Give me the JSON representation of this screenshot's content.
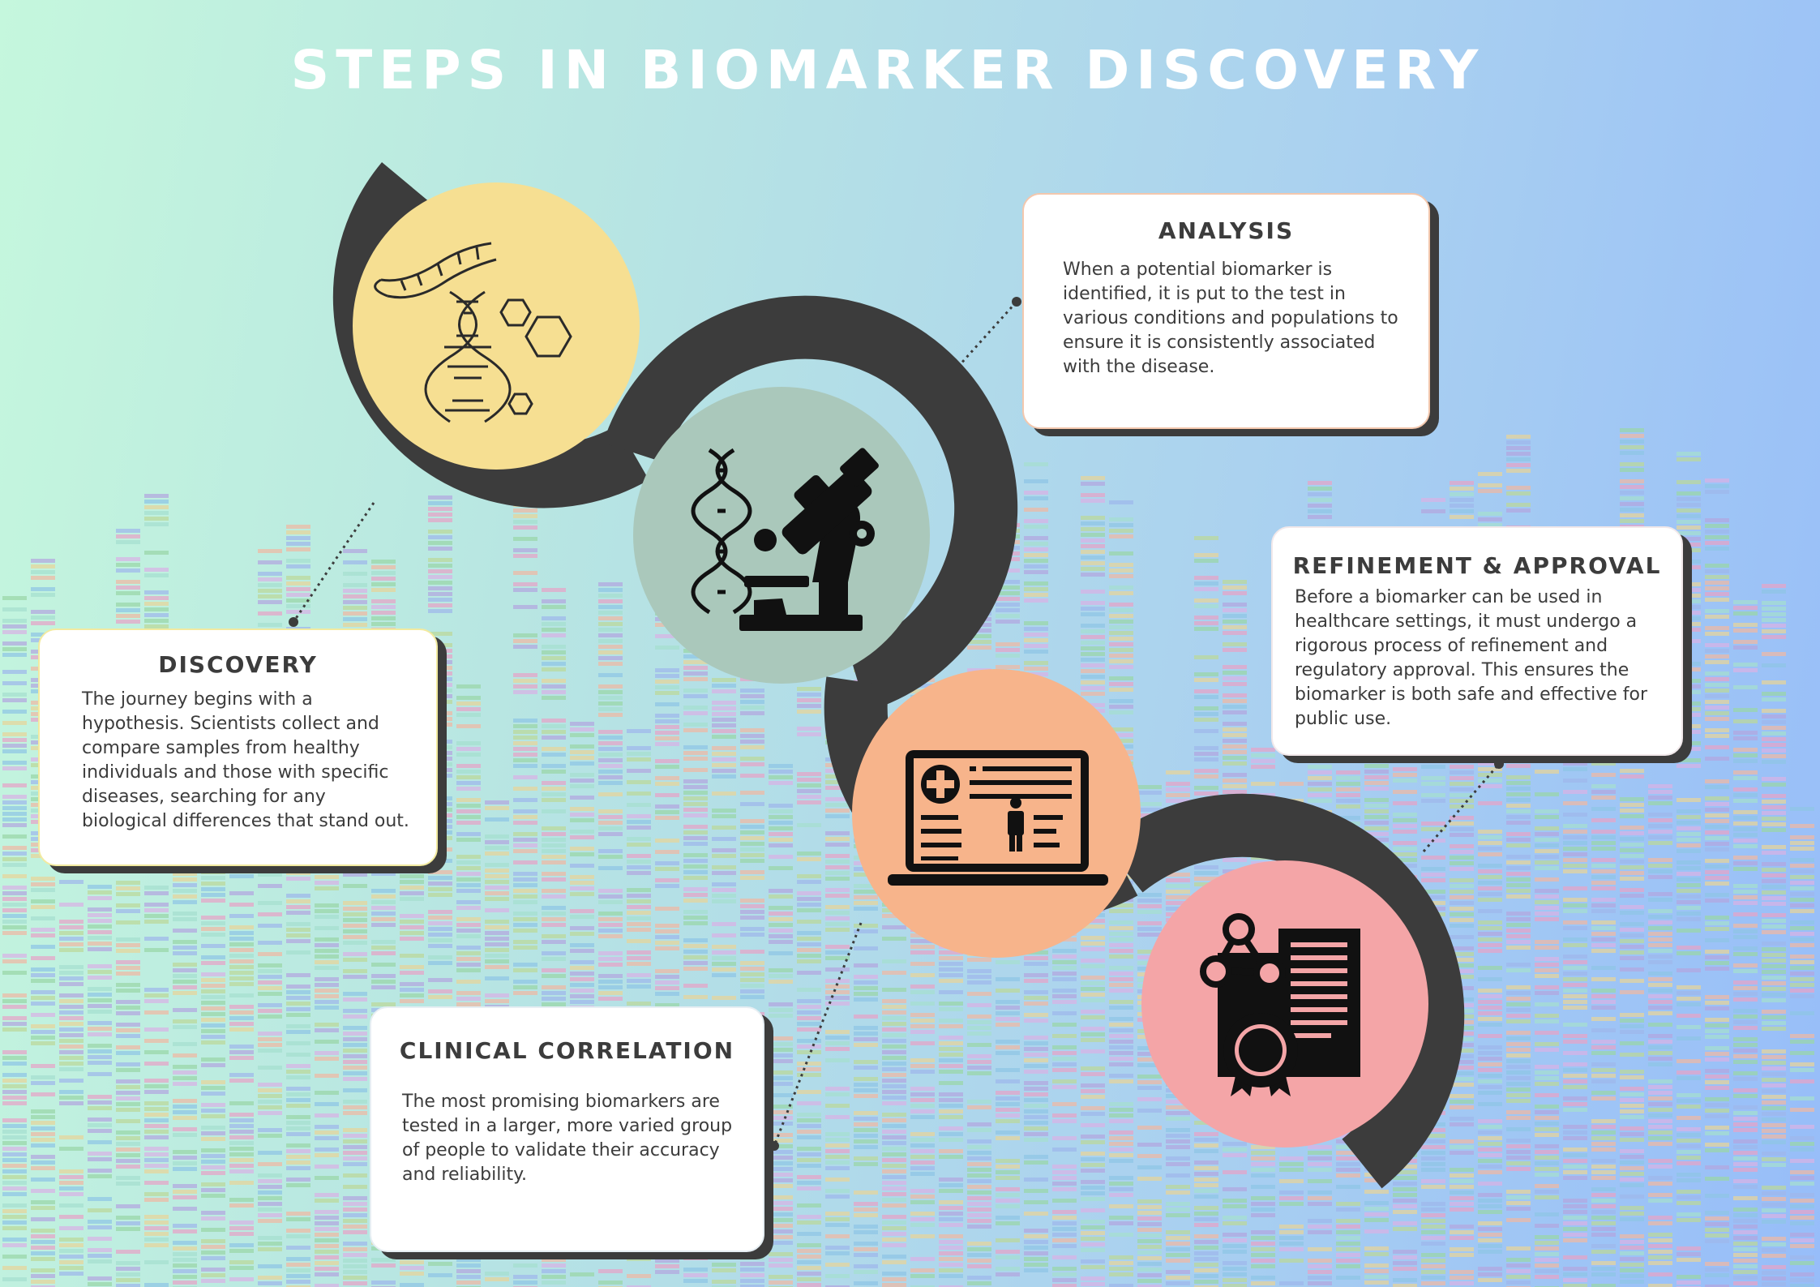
{
  "title": "STEPS IN BIOMARKER DISCOVERY",
  "colors": {
    "ribbon": "#3c3c3c",
    "discovery_circle": "#f6df92",
    "analysis_circle": "#aac8bb",
    "clinical_circle": "#f7b48b",
    "refinement_circle": "#f4a5a7",
    "title_text": "#ffffff"
  },
  "steps": {
    "discovery": {
      "heading": "DISCOVERY",
      "text": "The journey begins with a hypothesis. Scientists collect and compare samples from healthy individuals and those with specific diseases, searching for any biological differences that stand out.",
      "icon": "dna-molecule-icon"
    },
    "analysis": {
      "heading": "ANALYSIS",
      "text": "When a potential biomarker is identified, it is put to the test in various conditions and populations to ensure it is consistently associated with the disease.",
      "icon": "microscope-dna-icon"
    },
    "clinical": {
      "heading": "CLINICAL CORRELATION",
      "text": "The most promising biomarkers are tested in a larger, more varied group of people to validate their accuracy and reliability.",
      "icon": "laptop-medical-record-icon"
    },
    "refinement": {
      "heading": "REFINEMENT & APPROVAL",
      "text": "Before a biomarker can be used in healthcare settings, it must undergo a rigorous process of refinement and regulatory approval. This ensures the biomarker is both safe and effective for public use.",
      "icon": "certificate-approval-icon"
    }
  }
}
